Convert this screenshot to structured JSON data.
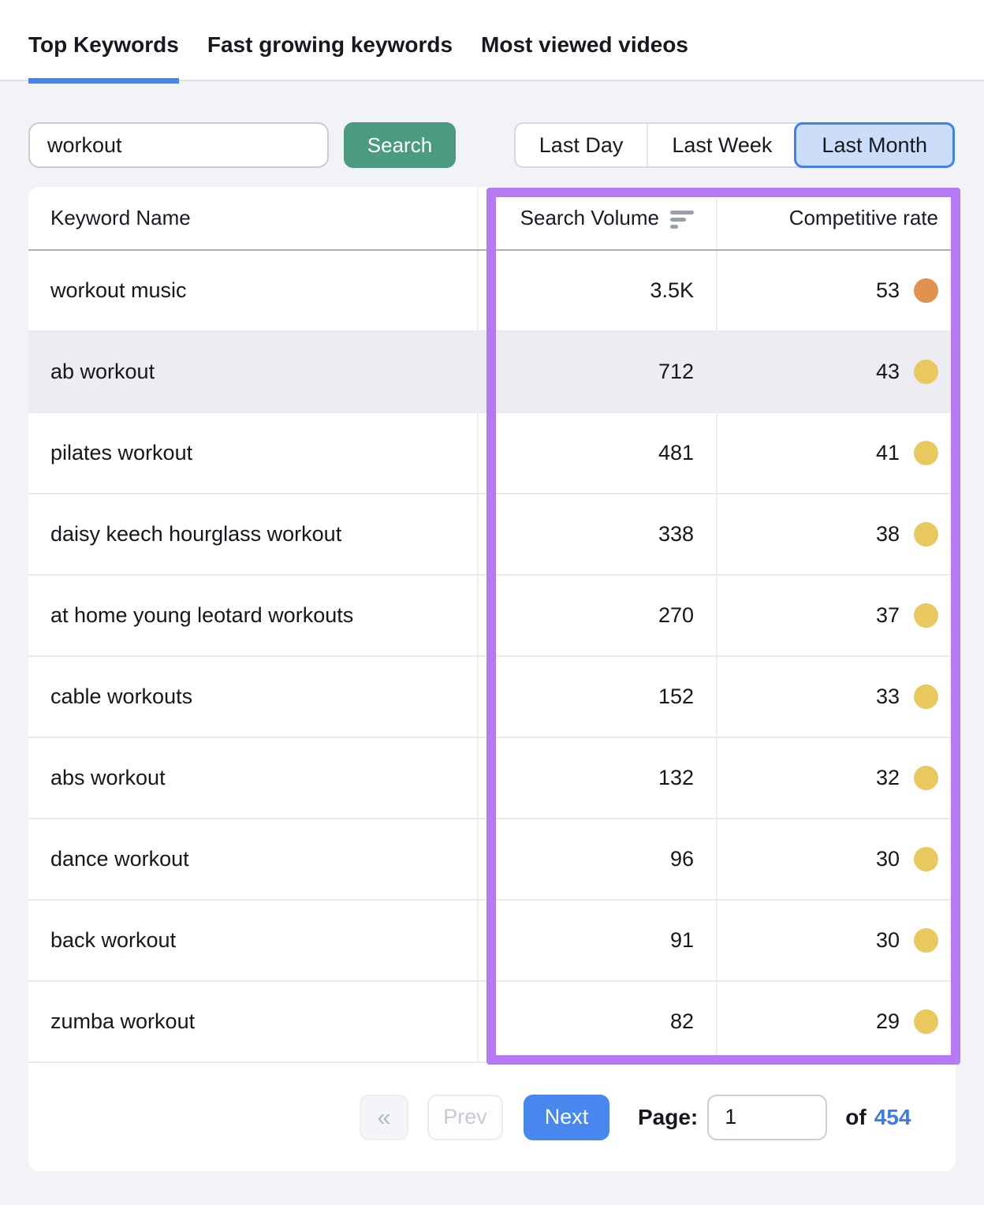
{
  "tabs": [
    {
      "label": "Top Keywords",
      "active": true
    },
    {
      "label": "Fast growing keywords",
      "active": false
    },
    {
      "label": "Most viewed videos",
      "active": false
    }
  ],
  "search": {
    "value": "workout",
    "button_label": "Search"
  },
  "time_filters": {
    "day": "Last Day",
    "week": "Last Week",
    "month": "Last Month",
    "selected": "Last Month"
  },
  "table": {
    "headers": {
      "keyword": "Keyword Name",
      "volume": "Search Volume",
      "competitive": "Competitive rate"
    },
    "rows": [
      {
        "keyword": "workout music",
        "volume": "3.5K",
        "rate": "53",
        "dot_color": "#E2924F",
        "highlighted": false
      },
      {
        "keyword": "ab workout",
        "volume": "712",
        "rate": "43",
        "dot_color": "#E9C95E",
        "highlighted": true
      },
      {
        "keyword": "pilates workout",
        "volume": "481",
        "rate": "41",
        "dot_color": "#E9C95E",
        "highlighted": false
      },
      {
        "keyword": "daisy keech hourglass workout",
        "volume": "338",
        "rate": "38",
        "dot_color": "#E9C95E",
        "highlighted": false
      },
      {
        "keyword": "at home young leotard workouts",
        "volume": "270",
        "rate": "37",
        "dot_color": "#E9C95E",
        "highlighted": false
      },
      {
        "keyword": "cable workouts",
        "volume": "152",
        "rate": "33",
        "dot_color": "#E9C95E",
        "highlighted": false
      },
      {
        "keyword": "abs workout",
        "volume": "132",
        "rate": "32",
        "dot_color": "#E9C95E",
        "highlighted": false
      },
      {
        "keyword": "dance workout",
        "volume": "96",
        "rate": "30",
        "dot_color": "#E9C95E",
        "highlighted": false
      },
      {
        "keyword": "back workout",
        "volume": "91",
        "rate": "30",
        "dot_color": "#E9C95E",
        "highlighted": false
      },
      {
        "keyword": "zumba workout",
        "volume": "82",
        "rate": "29",
        "dot_color": "#E9C95E",
        "highlighted": false
      }
    ]
  },
  "pagination": {
    "first_label": "«",
    "prev_label": "Prev",
    "next_label": "Next",
    "page_label": "Page:",
    "page_value": "1",
    "of_label": "of",
    "total_pages": "454"
  },
  "colors": {
    "accent_blue": "#4485F0",
    "accent_green": "#4A9B7F",
    "annotation_purple": "#B479F3",
    "selected_filter_bg": "#CBDDF9",
    "dot_orange": "#E2924F",
    "dot_yellow": "#E9C95E"
  }
}
